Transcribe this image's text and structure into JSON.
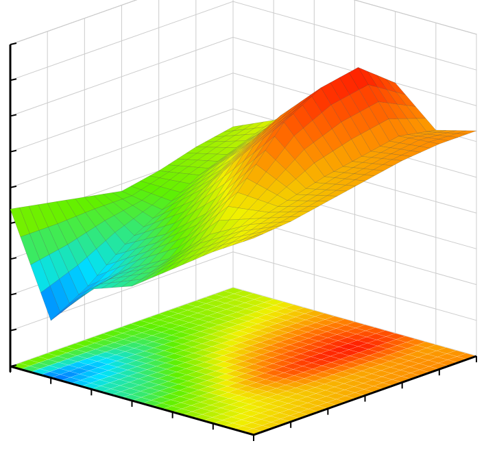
{
  "chart_data": {
    "type": "surface",
    "xlim": [
      0,
      6
    ],
    "ylim": [
      0,
      6
    ],
    "zlim": [
      0,
      9
    ],
    "xticks": [
      0,
      1,
      2,
      3,
      4,
      5,
      6
    ],
    "yticks": [
      0,
      1,
      2,
      3,
      4,
      5,
      6
    ],
    "zticks": [
      0,
      1,
      2,
      3,
      4,
      5,
      6,
      7,
      8,
      9
    ],
    "grid": true,
    "colors": [
      "#5a00a0",
      "#0040ff",
      "#00e0ff",
      "#60f000",
      "#f0f000",
      "#ff8000",
      "#ff1a00",
      "#8b0000"
    ],
    "z": [
      [
        4.5,
        5.0,
        5.8,
        6.5,
        7.0,
        6.0,
        6.3
      ],
      [
        4.3,
        4.6,
        5.6,
        6.8,
        7.8,
        6.2,
        6.3
      ],
      [
        4.0,
        4.2,
        5.2,
        6.5,
        7.6,
        6.0,
        6.2
      ],
      [
        3.8,
        3.6,
        4.5,
        5.8,
        7.0,
        5.8,
        6.0
      ],
      [
        4.0,
        3.0,
        3.6,
        4.5,
        5.8,
        5.5,
        5.8
      ],
      [
        4.2,
        2.2,
        3.0,
        3.6,
        4.6,
        5.2,
        5.6
      ],
      [
        4.4,
        1.6,
        2.8,
        3.2,
        4.0,
        4.8,
        5.5
      ]
    ]
  }
}
